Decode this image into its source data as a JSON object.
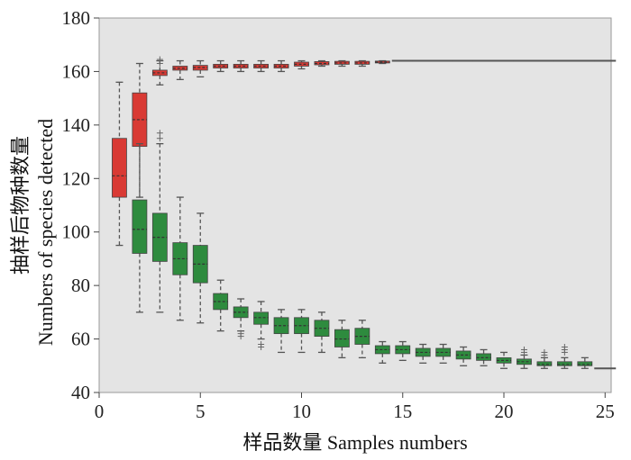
{
  "chart_data": {
    "type": "box",
    "xlabel": "样品数量  Samples numbers",
    "ylabel_cn": "抽样后物种数量",
    "ylabel_en": "Numbers of species detected",
    "xlim": [
      0,
      25.3
    ],
    "ylim": [
      40,
      180
    ],
    "xticks": [
      0,
      5,
      10,
      15,
      20,
      25
    ],
    "yticks": [
      40,
      60,
      80,
      100,
      120,
      140,
      160,
      180
    ],
    "grid": false,
    "series": [
      {
        "color": "#d93a34",
        "boxes": [
          {
            "x": 1,
            "low": 95,
            "q1": 113,
            "median": 121,
            "q3": 135,
            "high": 156
          },
          {
            "x": 2,
            "low": 113,
            "q1": 132,
            "median": 142,
            "q3": 152,
            "high": 163
          },
          {
            "x": 3,
            "low": 155,
            "q1": 158.5,
            "median": 159.5,
            "q3": 160.5,
            "high": 164,
            "outliers": [
              163,
              164.5
            ]
          },
          {
            "x": 4,
            "low": 157,
            "q1": 160.5,
            "median": 161.2,
            "q3": 162,
            "high": 164
          },
          {
            "x": 5,
            "low": 158,
            "q1": 160.5,
            "median": 161.5,
            "q3": 162.3,
            "high": 164
          },
          {
            "x": 6,
            "low": 160,
            "q1": 161.3,
            "median": 162,
            "q3": 162.7,
            "high": 164
          },
          {
            "x": 7,
            "low": 160,
            "q1": 161.3,
            "median": 162,
            "q3": 162.7,
            "high": 164
          },
          {
            "x": 8,
            "low": 160,
            "q1": 161.3,
            "median": 162,
            "q3": 162.7,
            "high": 164
          },
          {
            "x": 9,
            "low": 160,
            "q1": 161.3,
            "median": 162,
            "q3": 162.7,
            "high": 164
          },
          {
            "x": 10,
            "low": 161,
            "q1": 162,
            "median": 162.7,
            "q3": 163.5,
            "high": 164
          },
          {
            "x": 11,
            "low": 162,
            "q1": 162.5,
            "median": 163,
            "q3": 163.7,
            "high": 164
          },
          {
            "x": 12,
            "low": 162,
            "q1": 162.7,
            "median": 163.2,
            "q3": 163.8,
            "high": 164
          },
          {
            "x": 13,
            "low": 162,
            "q1": 162.7,
            "median": 163.2,
            "q3": 163.8,
            "high": 164
          },
          {
            "x": 14,
            "low": 163,
            "q1": 163.2,
            "median": 163.5,
            "q3": 163.9,
            "high": 164
          },
          {
            "x": 15,
            "low": 164,
            "q1": 164,
            "median": 164,
            "q3": 164,
            "high": 164
          },
          {
            "x": 16,
            "low": 164,
            "q1": 164,
            "median": 164,
            "q3": 164,
            "high": 164
          },
          {
            "x": 17,
            "low": 164,
            "q1": 164,
            "median": 164,
            "q3": 164,
            "high": 164
          },
          {
            "x": 18,
            "low": 164,
            "q1": 164,
            "median": 164,
            "q3": 164,
            "high": 164
          },
          {
            "x": 19,
            "low": 164,
            "q1": 164,
            "median": 164,
            "q3": 164,
            "high": 164
          },
          {
            "x": 20,
            "low": 164,
            "q1": 164,
            "median": 164,
            "q3": 164,
            "high": 164
          },
          {
            "x": 21,
            "low": 164,
            "q1": 164,
            "median": 164,
            "q3": 164,
            "high": 164
          },
          {
            "x": 22,
            "low": 164,
            "q1": 164,
            "median": 164,
            "q3": 164,
            "high": 164
          },
          {
            "x": 23,
            "low": 164,
            "q1": 164,
            "median": 164,
            "q3": 164,
            "high": 164
          },
          {
            "x": 24,
            "low": 164,
            "q1": 164,
            "median": 164,
            "q3": 164,
            "high": 164
          },
          {
            "x": 25,
            "low": 164,
            "q1": 164,
            "median": 164,
            "q3": 164,
            "high": 164
          }
        ]
      },
      {
        "color": "#2e8b3e",
        "boxes": [
          {
            "x": 2,
            "low": 70,
            "q1": 92,
            "median": 101,
            "q3": 112,
            "high": 133
          },
          {
            "x": 3,
            "low": 70,
            "q1": 89,
            "median": 98,
            "q3": 107,
            "high": 133,
            "outliers": [
              135,
              137
            ]
          },
          {
            "x": 4,
            "low": 67,
            "q1": 84,
            "median": 90,
            "q3": 96,
            "high": 113
          },
          {
            "x": 5,
            "low": 66,
            "q1": 81,
            "median": 88,
            "q3": 95,
            "high": 107
          },
          {
            "x": 6,
            "low": 63,
            "q1": 71,
            "median": 74,
            "q3": 77,
            "high": 82
          },
          {
            "x": 7,
            "low": 63,
            "q1": 68,
            "median": 70,
            "q3": 72,
            "high": 75,
            "outliers": [
              61,
              62
            ]
          },
          {
            "x": 8,
            "low": 60,
            "q1": 65.5,
            "median": 68,
            "q3": 70,
            "high": 74,
            "outliers": [
              57,
              58
            ]
          },
          {
            "x": 9,
            "low": 55,
            "q1": 62,
            "median": 65,
            "q3": 68,
            "high": 71
          },
          {
            "x": 10,
            "low": 55,
            "q1": 62,
            "median": 65,
            "q3": 68,
            "high": 71
          },
          {
            "x": 11,
            "low": 55,
            "q1": 61,
            "median": 64,
            "q3": 67,
            "high": 70
          },
          {
            "x": 12,
            "low": 53,
            "q1": 57,
            "median": 60,
            "q3": 63.5,
            "high": 67
          },
          {
            "x": 13,
            "low": 53,
            "q1": 58,
            "median": 61,
            "q3": 64,
            "high": 67
          },
          {
            "x": 14,
            "low": 51,
            "q1": 54.5,
            "median": 56,
            "q3": 57.5,
            "high": 59
          },
          {
            "x": 15,
            "low": 52,
            "q1": 54.5,
            "median": 56,
            "q3": 57.5,
            "high": 59
          },
          {
            "x": 16,
            "low": 51,
            "q1": 53.5,
            "median": 55,
            "q3": 56.5,
            "high": 58
          },
          {
            "x": 17,
            "low": 51,
            "q1": 53.5,
            "median": 55,
            "q3": 56.5,
            "high": 58
          },
          {
            "x": 18,
            "low": 50,
            "q1": 52.5,
            "median": 54,
            "q3": 55.5,
            "high": 57
          },
          {
            "x": 19,
            "low": 50,
            "q1": 52,
            "median": 53,
            "q3": 54.5,
            "high": 56
          },
          {
            "x": 20,
            "low": 49,
            "q1": 51,
            "median": 52,
            "q3": 53,
            "high": 55
          },
          {
            "x": 21,
            "low": 49,
            "q1": 50.5,
            "median": 51.5,
            "q3": 52.5,
            "high": 54,
            "outliers": [
              55,
              56
            ]
          },
          {
            "x": 22,
            "low": 49,
            "q1": 50,
            "median": 50.5,
            "q3": 51.5,
            "high": 53,
            "outliers": [
              54,
              55
            ]
          },
          {
            "x": 23,
            "low": 49,
            "q1": 50,
            "median": 50.5,
            "q3": 51.5,
            "high": 53,
            "outliers": [
              55,
              56,
              57
            ]
          },
          {
            "x": 24,
            "low": 49,
            "q1": 50,
            "median": 50.5,
            "q3": 51.5,
            "high": 53
          },
          {
            "x": 25,
            "low": 49,
            "q1": 49,
            "median": 49,
            "q3": 49,
            "high": 49
          }
        ]
      }
    ]
  }
}
